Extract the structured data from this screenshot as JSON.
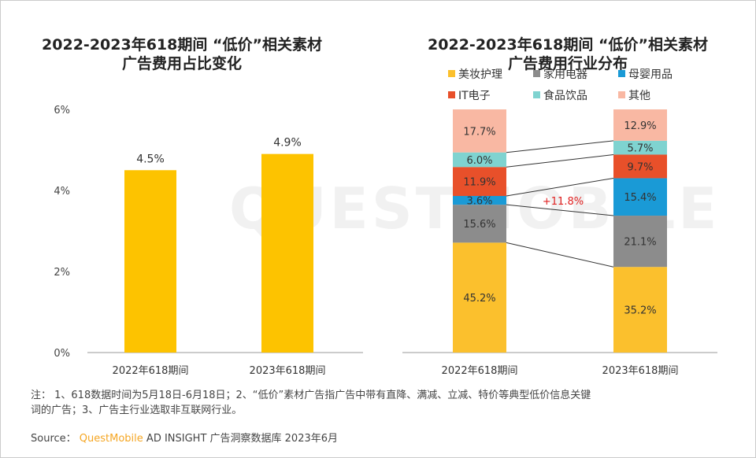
{
  "watermark": "QUESTMOBILE",
  "left_title": [
    "2022-2023年618期间 “低价”相关素材",
    "广告费用占比变化"
  ],
  "right_title": [
    "2022-2023年618期间 “低价”相关素材",
    "广告费用行业分布"
  ],
  "note": [
    "注： 1、618数据时间为5月18日-6月18日；2、“低价”素材广告指广告中带有直降、满减、立减、特价等典型低价信息关键",
    "词的广告；3、广告主行业选取非互联网行业。"
  ],
  "source": {
    "label": "Source：",
    "brand": "QuestMobile",
    "rest": "AD INSIGHT 广告洞察数据库 2023年6月"
  },
  "chart_data": [
    {
      "type": "bar",
      "categories": [
        "2022年618期间",
        "2023年618期间"
      ],
      "values": [
        4.5,
        4.9
      ],
      "data_labels": [
        "4.5%",
        "4.9%"
      ],
      "ylim": [
        0,
        6
      ],
      "yticks": [
        "0%",
        "2%",
        "4%",
        "6%"
      ],
      "color": "#FDC300",
      "grid": false
    },
    {
      "type": "bar",
      "stacked": true,
      "percent": true,
      "categories": [
        "2022年618期间",
        "2023年618期间"
      ],
      "series": [
        {
          "name": "美妆护理",
          "values": [
            45.2,
            35.2
          ],
          "color": "#FBC02D"
        },
        {
          "name": "家用电器",
          "values": [
            15.6,
            21.1
          ],
          "color": "#8C8C8C"
        },
        {
          "name": "母婴用品",
          "values": [
            3.6,
            15.4
          ],
          "color": "#1A9AD6"
        },
        {
          "name": "IT电子",
          "values": [
            11.9,
            9.7
          ],
          "color": "#E8502A"
        },
        {
          "name": "食品饮品",
          "values": [
            6.0,
            5.7
          ],
          "color": "#7FD3D0"
        },
        {
          "name": "其他",
          "values": [
            17.7,
            12.9
          ],
          "color": "#F9B8A3"
        }
      ],
      "annotation": "+11.8%",
      "annotation_color": "#E02020",
      "legend": "top"
    }
  ]
}
